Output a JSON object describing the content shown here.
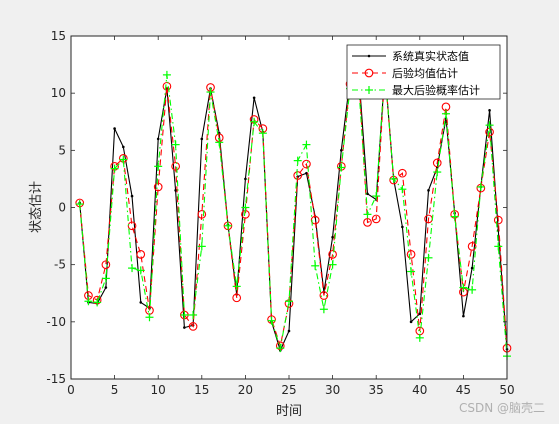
{
  "chart_data": {
    "type": "line",
    "title": "",
    "xlabel": "时间",
    "ylabel": "状态估计",
    "xlim": [
      0,
      50
    ],
    "ylim": [
      -15,
      15
    ],
    "xticks": [
      0,
      5,
      10,
      15,
      20,
      25,
      30,
      35,
      40,
      45,
      50
    ],
    "yticks": [
      -15,
      -10,
      -5,
      0,
      5,
      10,
      15
    ],
    "legend_position": "top-right",
    "x": [
      1,
      2,
      3,
      4,
      5,
      6,
      7,
      8,
      9,
      10,
      11,
      12,
      13,
      14,
      15,
      16,
      17,
      18,
      19,
      20,
      21,
      22,
      23,
      24,
      25,
      26,
      27,
      28,
      29,
      30,
      31,
      32,
      33,
      34,
      35,
      36,
      37,
      38,
      39,
      40,
      41,
      42,
      43,
      44,
      45,
      46,
      47,
      48,
      49,
      50
    ],
    "series": [
      {
        "name": "系统真实状态值",
        "color": "#000000",
        "style": "solid-dot",
        "values": [
          0.4,
          -8.3,
          -8.4,
          -7.0,
          6.9,
          5.3,
          1.0,
          -8.3,
          -8.8,
          6.0,
          10.4,
          1.5,
          -10.5,
          -10.3,
          6.0,
          10.4,
          6.5,
          -1.5,
          -7.6,
          2.5,
          9.6,
          6.6,
          -10.0,
          -12.5,
          -10.8,
          2.7,
          3.0,
          -0.8,
          -7.4,
          -2.6,
          5.0,
          11.2,
          11.6,
          1.2,
          0.7,
          12.0,
          2.5,
          -1.7,
          -10.0,
          -9.3,
          1.5,
          3.5,
          7.8,
          -0.5,
          -9.5,
          -5.3,
          1.8,
          8.5,
          -2.0,
          -12.4
        ]
      },
      {
        "name": "后验均值估计",
        "color": "#ff0000",
        "style": "dashed-circle",
        "values": [
          0.4,
          -7.7,
          -8.1,
          -5.0,
          3.6,
          4.3,
          -1.6,
          -4.1,
          -9.0,
          1.8,
          10.6,
          3.6,
          -9.4,
          -10.4,
          -0.6,
          10.5,
          6.1,
          -1.6,
          -7.9,
          -0.6,
          7.7,
          6.9,
          -9.8,
          -12.1,
          -8.4,
          2.8,
          3.8,
          -1.1,
          -7.7,
          -4.1,
          3.6,
          10.8,
          11.4,
          -1.3,
          -1.0,
          12.0,
          2.4,
          3.0,
          -4.1,
          -10.8,
          -1.0,
          3.9,
          8.8,
          -0.6,
          -7.4,
          -3.4,
          1.7,
          6.6,
          -1.1,
          -12.3
        ]
      },
      {
        "name": "最大后验概率估计",
        "color": "#00ff00",
        "style": "dashdot-plus",
        "values": [
          0.3,
          -8.2,
          -8.3,
          -6.2,
          3.4,
          4.2,
          -5.3,
          -5.5,
          -9.6,
          3.6,
          11.6,
          5.5,
          -9.4,
          -9.4,
          -3.4,
          10.1,
          5.7,
          -1.6,
          -6.9,
          0.0,
          7.5,
          6.5,
          -9.9,
          -12.3,
          -8.2,
          4.1,
          5.5,
          -5.1,
          -8.9,
          -5.0,
          3.5,
          10.4,
          10.5,
          -0.6,
          1.0,
          12.0,
          2.5,
          1.6,
          -5.6,
          -11.4,
          -4.4,
          3.1,
          8.2,
          -0.8,
          -7.0,
          -7.2,
          1.8,
          7.2,
          -3.4,
          -13.0
        ]
      }
    ]
  },
  "watermark": "CSDN @脑壳二"
}
